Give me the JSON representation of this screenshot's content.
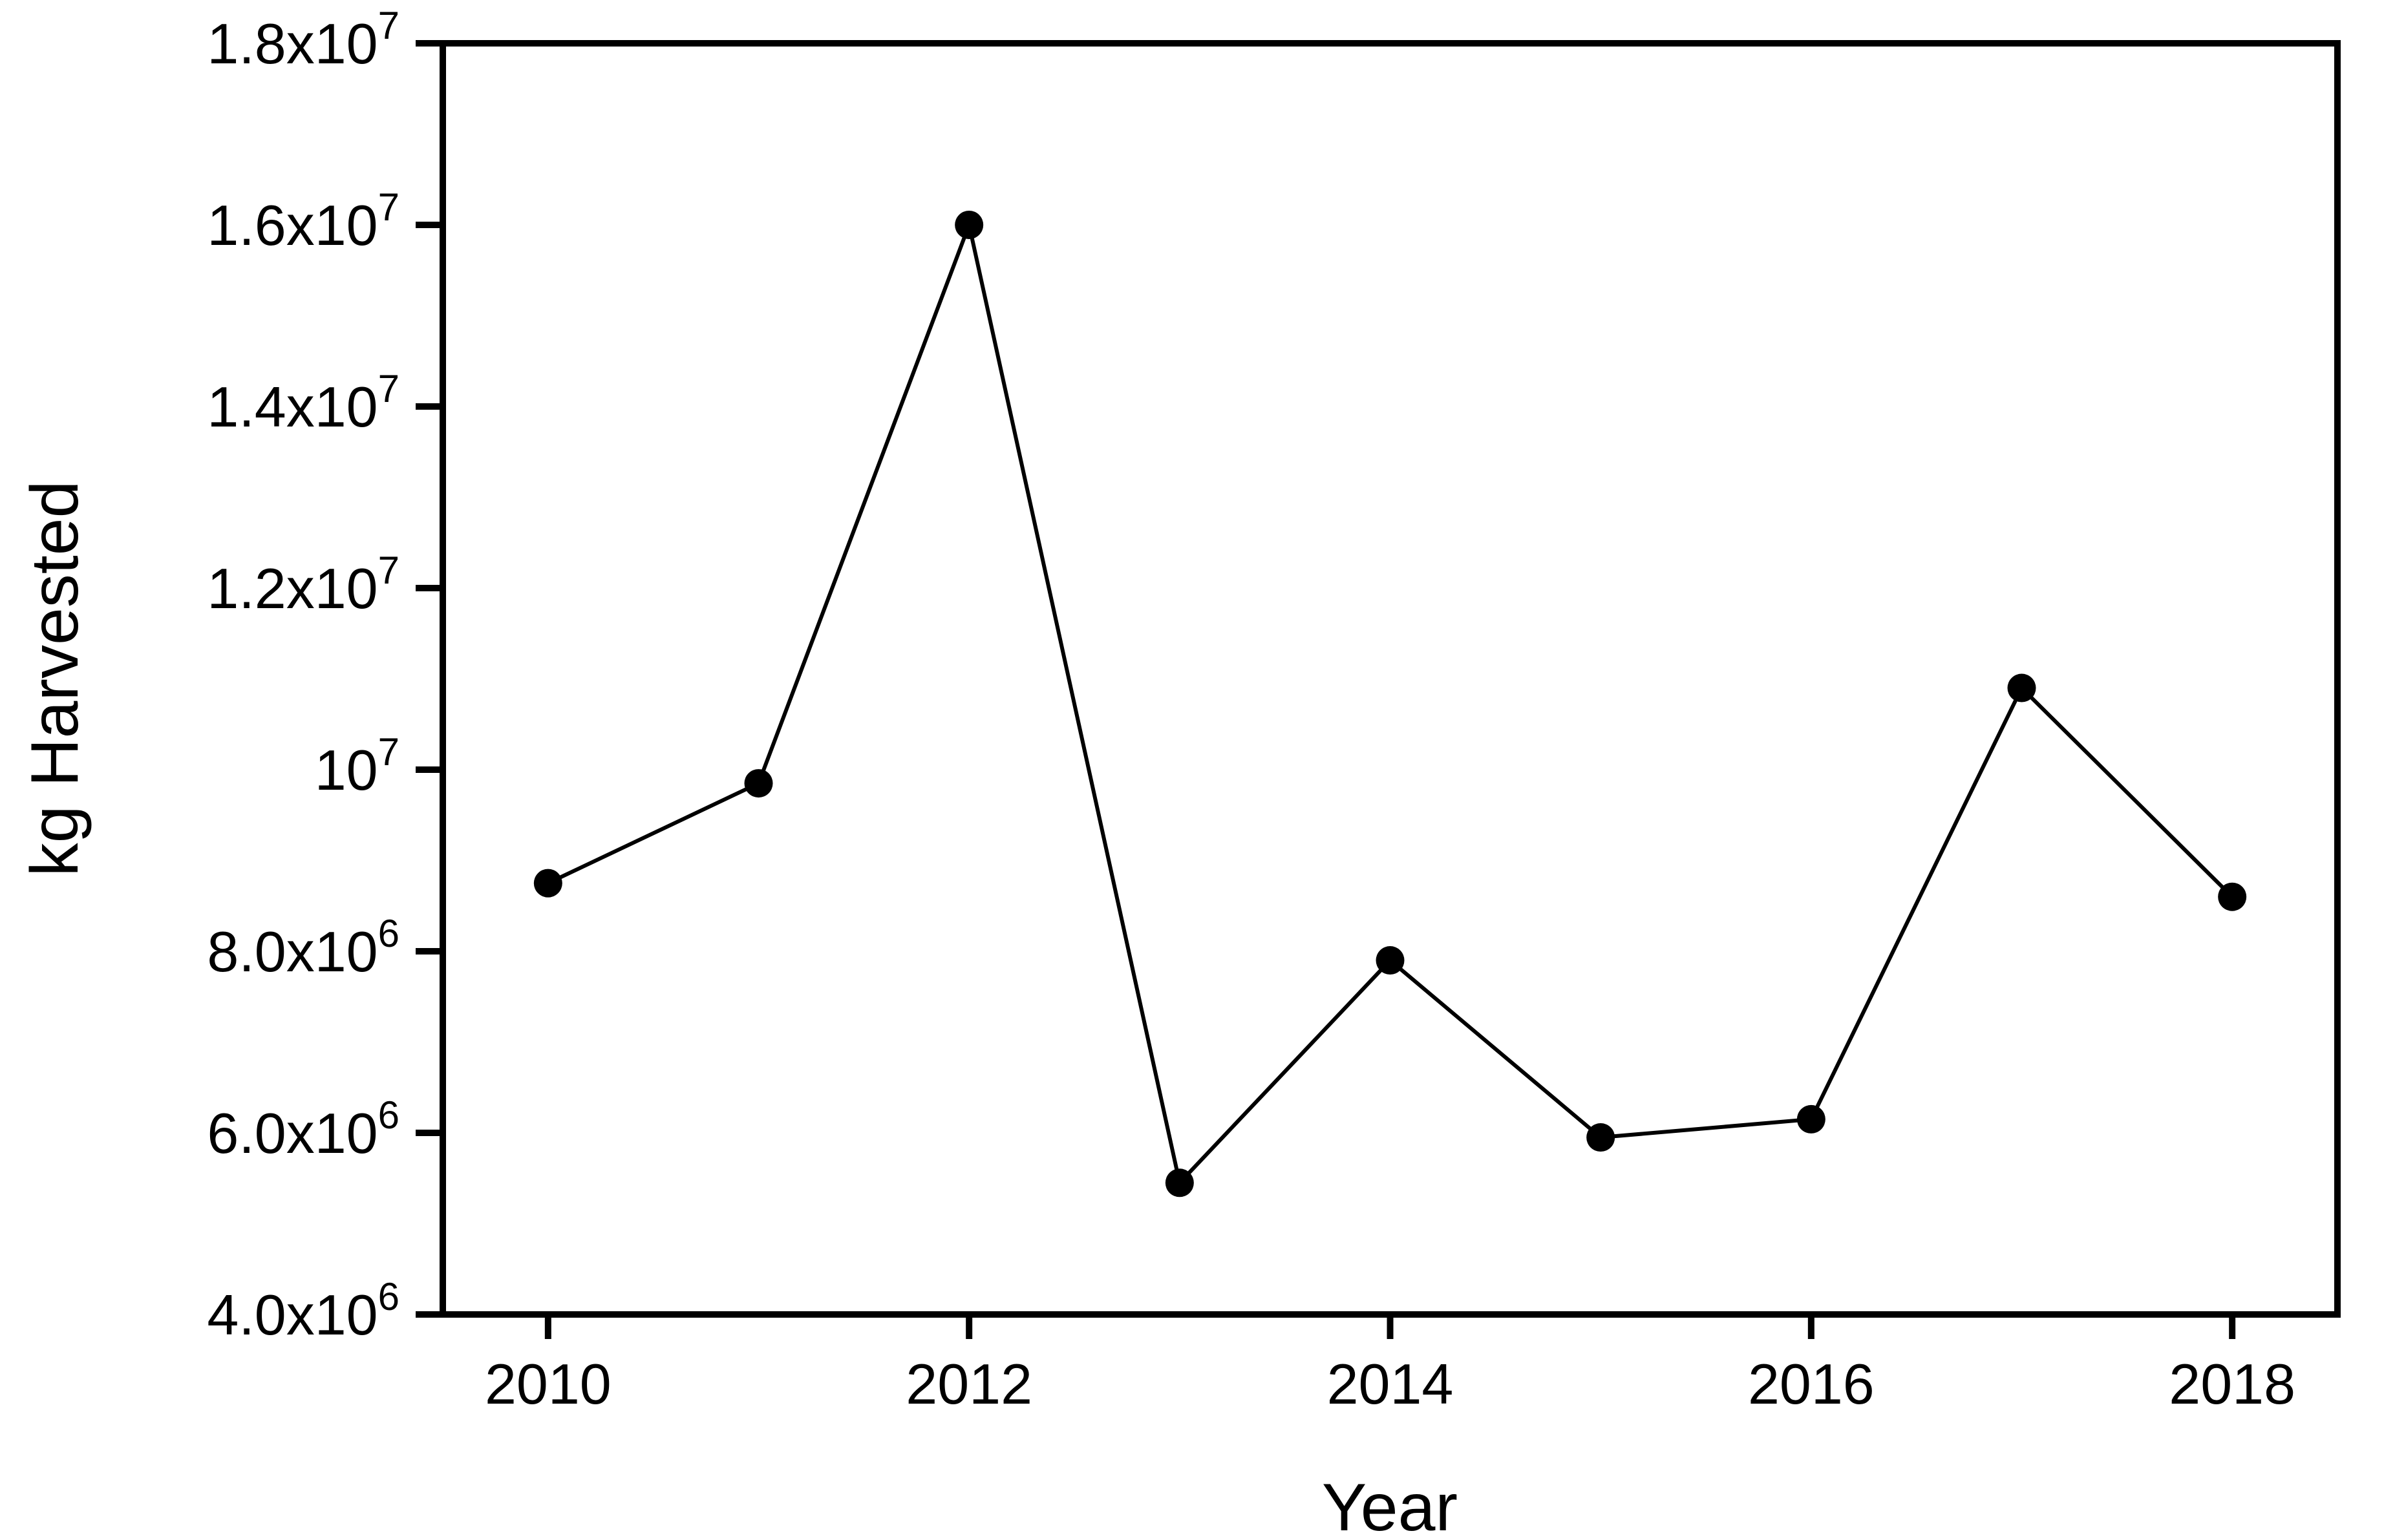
{
  "page": {
    "background": "#ffffff",
    "ink_color": "#000000"
  },
  "chart_data": {
    "type": "line",
    "title": "",
    "xlabel": "Year",
    "ylabel": "kg Harvested",
    "x": [
      2010,
      2011,
      2012,
      2013,
      2014,
      2015,
      2016,
      2017,
      2018
    ],
    "series": [
      {
        "name": "kg Harvested",
        "values": [
          8750000,
          9850000,
          16000000,
          5450000,
          7900000,
          5950000,
          6150000,
          10900000,
          8600000
        ],
        "marker": "filled-circle",
        "color": "#000000"
      }
    ],
    "xlim": [
      2009.5,
      2018.5
    ],
    "ylim": [
      4000000,
      18000000
    ],
    "x_ticks": [
      {
        "value": 2010,
        "label": "2010"
      },
      {
        "value": 2012,
        "label": "2012"
      },
      {
        "value": 2014,
        "label": "2014"
      },
      {
        "value": 2016,
        "label": "2016"
      },
      {
        "value": 2018,
        "label": "2018"
      }
    ],
    "y_ticks": [
      {
        "value": 18000000,
        "mantissa": "1.8x10",
        "exponent": "7"
      },
      {
        "value": 16000000,
        "mantissa": "1.6x10",
        "exponent": "7"
      },
      {
        "value": 14000000,
        "mantissa": "1.4x10",
        "exponent": "7"
      },
      {
        "value": 12000000,
        "mantissa": "1.2x10",
        "exponent": "7"
      },
      {
        "value": 10000000,
        "mantissa": "10",
        "exponent": "7"
      },
      {
        "value": 8000000,
        "mantissa": "8.0x10",
        "exponent": "6"
      },
      {
        "value": 6000000,
        "mantissa": "6.0x10",
        "exponent": "6"
      },
      {
        "value": 4000000,
        "mantissa": "4.0x10",
        "exponent": "6"
      }
    ],
    "grid": false,
    "legend": "none",
    "frame": "full-box"
  }
}
